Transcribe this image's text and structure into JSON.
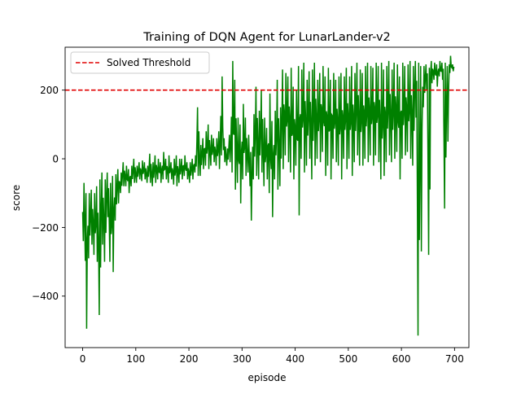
{
  "chart_data": {
    "type": "line",
    "title": "Training of DQN Agent for LunarLander-v2",
    "xlabel": "episode",
    "ylabel": "score",
    "xlim": [
      -33,
      727
    ],
    "ylim": [
      -550,
      325
    ],
    "xticks": [
      0,
      100,
      200,
      300,
      400,
      500,
      600,
      700
    ],
    "yticks": [
      -400,
      -200,
      0,
      200
    ],
    "ytick_labels": [
      "−400",
      "−200",
      "0",
      "200"
    ],
    "grid": false,
    "legend": {
      "placement": "top-left",
      "entries": [
        {
          "label": "Solved Threshold",
          "style": "dashed",
          "color": "#d62728"
        }
      ]
    },
    "threshold": {
      "y": 200,
      "label": "Solved Threshold",
      "color": "#e00000"
    },
    "series": [
      {
        "color": "#008000",
        "stride": 5,
        "values": [
          {
            "x": 0,
            "lo": -240,
            "hi": -70
          },
          {
            "x": 5,
            "lo": -495,
            "hi": -100
          },
          {
            "x": 10,
            "lo": -290,
            "hi": -100
          },
          {
            "x": 15,
            "lo": -250,
            "hi": -90
          },
          {
            "x": 20,
            "lo": -280,
            "hi": -100
          },
          {
            "x": 25,
            "lo": -300,
            "hi": -80
          },
          {
            "x": 30,
            "lo": -455,
            "hi": -60
          },
          {
            "x": 35,
            "lo": -250,
            "hi": -40
          },
          {
            "x": 40,
            "lo": -300,
            "hi": -60
          },
          {
            "x": 45,
            "lo": -170,
            "hi": -40
          },
          {
            "x": 50,
            "lo": -300,
            "hi": -70
          },
          {
            "x": 55,
            "lo": -330,
            "hi": -50
          },
          {
            "x": 60,
            "lo": -180,
            "hi": -45
          },
          {
            "x": 65,
            "lo": -130,
            "hi": -30
          },
          {
            "x": 70,
            "lo": -100,
            "hi": -40
          },
          {
            "x": 75,
            "lo": -80,
            "hi": -10
          },
          {
            "x": 80,
            "lo": -80,
            "hi": -20
          },
          {
            "x": 85,
            "lo": -100,
            "hi": -30
          },
          {
            "x": 90,
            "lo": -80,
            "hi": -20
          },
          {
            "x": 95,
            "lo": -70,
            "hi": 0
          },
          {
            "x": 100,
            "lo": -70,
            "hi": -20
          },
          {
            "x": 105,
            "lo": -60,
            "hi": -10
          },
          {
            "x": 110,
            "lo": -65,
            "hi": -5
          },
          {
            "x": 115,
            "lo": -60,
            "hi": -10
          },
          {
            "x": 120,
            "lo": -70,
            "hi": -20
          },
          {
            "x": 125,
            "lo": -70,
            "hi": 15
          },
          {
            "x": 130,
            "lo": -80,
            "hi": -10
          },
          {
            "x": 135,
            "lo": -70,
            "hi": 10
          },
          {
            "x": 140,
            "lo": -60,
            "hi": 0
          },
          {
            "x": 145,
            "lo": -70,
            "hi": -10
          },
          {
            "x": 150,
            "lo": -60,
            "hi": 20
          },
          {
            "x": 155,
            "lo": -60,
            "hi": 0
          },
          {
            "x": 160,
            "lo": -70,
            "hi": 10
          },
          {
            "x": 165,
            "lo": -60,
            "hi": -10
          },
          {
            "x": 170,
            "lo": -75,
            "hi": 0
          },
          {
            "x": 175,
            "lo": -80,
            "hi": 10
          },
          {
            "x": 180,
            "lo": -70,
            "hi": 0
          },
          {
            "x": 185,
            "lo": -60,
            "hi": 0
          },
          {
            "x": 190,
            "lo": -50,
            "hi": 10
          },
          {
            "x": 195,
            "lo": -60,
            "hi": -10
          },
          {
            "x": 200,
            "lo": -70,
            "hi": -10
          },
          {
            "x": 205,
            "lo": -60,
            "hi": 0
          },
          {
            "x": 210,
            "lo": -40,
            "hi": 10
          },
          {
            "x": 215,
            "lo": -50,
            "hi": 150
          },
          {
            "x": 220,
            "lo": -50,
            "hi": 40
          },
          {
            "x": 225,
            "lo": -30,
            "hi": 60
          },
          {
            "x": 230,
            "lo": -20,
            "hi": 80
          },
          {
            "x": 235,
            "lo": -30,
            "hi": 100
          },
          {
            "x": 240,
            "lo": -20,
            "hi": 70
          },
          {
            "x": 245,
            "lo": -10,
            "hi": 60
          },
          {
            "x": 250,
            "lo": -20,
            "hi": 60
          },
          {
            "x": 255,
            "lo": -30,
            "hi": 80
          },
          {
            "x": 260,
            "lo": 10,
            "hi": 240
          },
          {
            "x": 265,
            "lo": -10,
            "hi": 60
          },
          {
            "x": 270,
            "lo": -20,
            "hi": 30
          },
          {
            "x": 275,
            "lo": -10,
            "hi": 70
          },
          {
            "x": 280,
            "lo": -40,
            "hi": 285
          },
          {
            "x": 285,
            "lo": -90,
            "hi": 230
          },
          {
            "x": 290,
            "lo": -70,
            "hi": 120
          },
          {
            "x": 295,
            "lo": -130,
            "hi": 100
          },
          {
            "x": 300,
            "lo": -60,
            "hi": 160
          },
          {
            "x": 305,
            "lo": -50,
            "hi": 120
          },
          {
            "x": 310,
            "lo": -40,
            "hi": 70
          },
          {
            "x": 315,
            "lo": -180,
            "hi": 20
          },
          {
            "x": 320,
            "lo": -60,
            "hi": 130
          },
          {
            "x": 325,
            "lo": -50,
            "hi": 210
          },
          {
            "x": 330,
            "lo": -60,
            "hi": 140
          },
          {
            "x": 335,
            "lo": -40,
            "hi": 200
          },
          {
            "x": 340,
            "lo": -80,
            "hi": 120
          },
          {
            "x": 345,
            "lo": -60,
            "hi": 90
          },
          {
            "x": 350,
            "lo": -100,
            "hi": 190
          },
          {
            "x": 355,
            "lo": -170,
            "hi": 110
          },
          {
            "x": 360,
            "lo": -60,
            "hi": 140
          },
          {
            "x": 365,
            "lo": -90,
            "hi": 230
          },
          {
            "x": 370,
            "lo": -80,
            "hi": 150
          },
          {
            "x": 375,
            "lo": -30,
            "hi": 260
          },
          {
            "x": 380,
            "lo": 10,
            "hi": 250
          },
          {
            "x": 385,
            "lo": -10,
            "hi": 240
          },
          {
            "x": 390,
            "lo": -40,
            "hi": 265
          },
          {
            "x": 395,
            "lo": -60,
            "hi": 210
          },
          {
            "x": 400,
            "lo": -20,
            "hi": 200
          },
          {
            "x": 405,
            "lo": -165,
            "hi": 270
          },
          {
            "x": 410,
            "lo": 0,
            "hi": 260
          },
          {
            "x": 415,
            "lo": -40,
            "hi": 280
          },
          {
            "x": 420,
            "lo": -20,
            "hi": 230
          },
          {
            "x": 425,
            "lo": 0,
            "hi": 255
          },
          {
            "x": 430,
            "lo": -60,
            "hi": 260
          },
          {
            "x": 435,
            "lo": -20,
            "hi": 280
          },
          {
            "x": 440,
            "lo": 0,
            "hi": 230
          },
          {
            "x": 445,
            "lo": -10,
            "hi": 250
          },
          {
            "x": 450,
            "lo": 20,
            "hi": 270
          },
          {
            "x": 455,
            "lo": -50,
            "hi": 240
          },
          {
            "x": 460,
            "lo": -20,
            "hi": 265
          },
          {
            "x": 465,
            "lo": -60,
            "hi": 230
          },
          {
            "x": 470,
            "lo": 0,
            "hi": 250
          },
          {
            "x": 475,
            "lo": -10,
            "hi": 230
          },
          {
            "x": 480,
            "lo": -20,
            "hi": 240
          },
          {
            "x": 485,
            "lo": -60,
            "hi": 250
          },
          {
            "x": 490,
            "lo": 0,
            "hi": 240
          },
          {
            "x": 495,
            "lo": -30,
            "hi": 265
          },
          {
            "x": 500,
            "lo": 0,
            "hi": 240
          },
          {
            "x": 505,
            "lo": -50,
            "hi": 270
          },
          {
            "x": 510,
            "lo": -10,
            "hi": 250
          },
          {
            "x": 515,
            "lo": 10,
            "hi": 280
          },
          {
            "x": 520,
            "lo": -20,
            "hi": 260
          },
          {
            "x": 525,
            "lo": -20,
            "hi": 250
          },
          {
            "x": 530,
            "lo": 0,
            "hi": 270
          },
          {
            "x": 535,
            "lo": -10,
            "hi": 280
          },
          {
            "x": 540,
            "lo": 10,
            "hi": 270
          },
          {
            "x": 545,
            "lo": -20,
            "hi": 265
          },
          {
            "x": 550,
            "lo": 10,
            "hi": 280
          },
          {
            "x": 555,
            "lo": -10,
            "hi": 270
          },
          {
            "x": 560,
            "lo": -60,
            "hi": 280
          },
          {
            "x": 565,
            "lo": -50,
            "hi": 260
          },
          {
            "x": 570,
            "lo": -10,
            "hi": 270
          },
          {
            "x": 575,
            "lo": 10,
            "hi": 285
          },
          {
            "x": 580,
            "lo": -10,
            "hi": 260
          },
          {
            "x": 585,
            "lo": 0,
            "hi": 280
          },
          {
            "x": 590,
            "lo": 20,
            "hi": 275
          },
          {
            "x": 595,
            "lo": -60,
            "hi": 240
          },
          {
            "x": 600,
            "lo": 0,
            "hi": 280
          },
          {
            "x": 605,
            "lo": 10,
            "hi": 270
          },
          {
            "x": 610,
            "lo": 20,
            "hi": 275
          },
          {
            "x": 615,
            "lo": 0,
            "hi": 285
          },
          {
            "x": 620,
            "lo": -20,
            "hi": 270
          },
          {
            "x": 625,
            "lo": 120,
            "hi": 285
          },
          {
            "x": 630,
            "lo": -515,
            "hi": 280
          },
          {
            "x": 635,
            "lo": -270,
            "hi": 270
          },
          {
            "x": 640,
            "lo": 150,
            "hi": 270
          },
          {
            "x": 645,
            "lo": 200,
            "hi": 275
          },
          {
            "x": 650,
            "lo": -280,
            "hi": 265
          },
          {
            "x": 655,
            "lo": 220,
            "hi": 285
          },
          {
            "x": 660,
            "lo": 230,
            "hi": 280
          },
          {
            "x": 665,
            "lo": 210,
            "hi": 275
          },
          {
            "x": 670,
            "lo": 240,
            "hi": 285
          },
          {
            "x": 675,
            "lo": 230,
            "hi": 280
          },
          {
            "x": 680,
            "lo": -145,
            "hi": 280
          },
          {
            "x": 685,
            "lo": 50,
            "hi": 270
          },
          {
            "x": 690,
            "lo": 250,
            "hi": 300
          },
          {
            "x": 695,
            "lo": 255,
            "hi": 275
          }
        ]
      }
    ]
  }
}
